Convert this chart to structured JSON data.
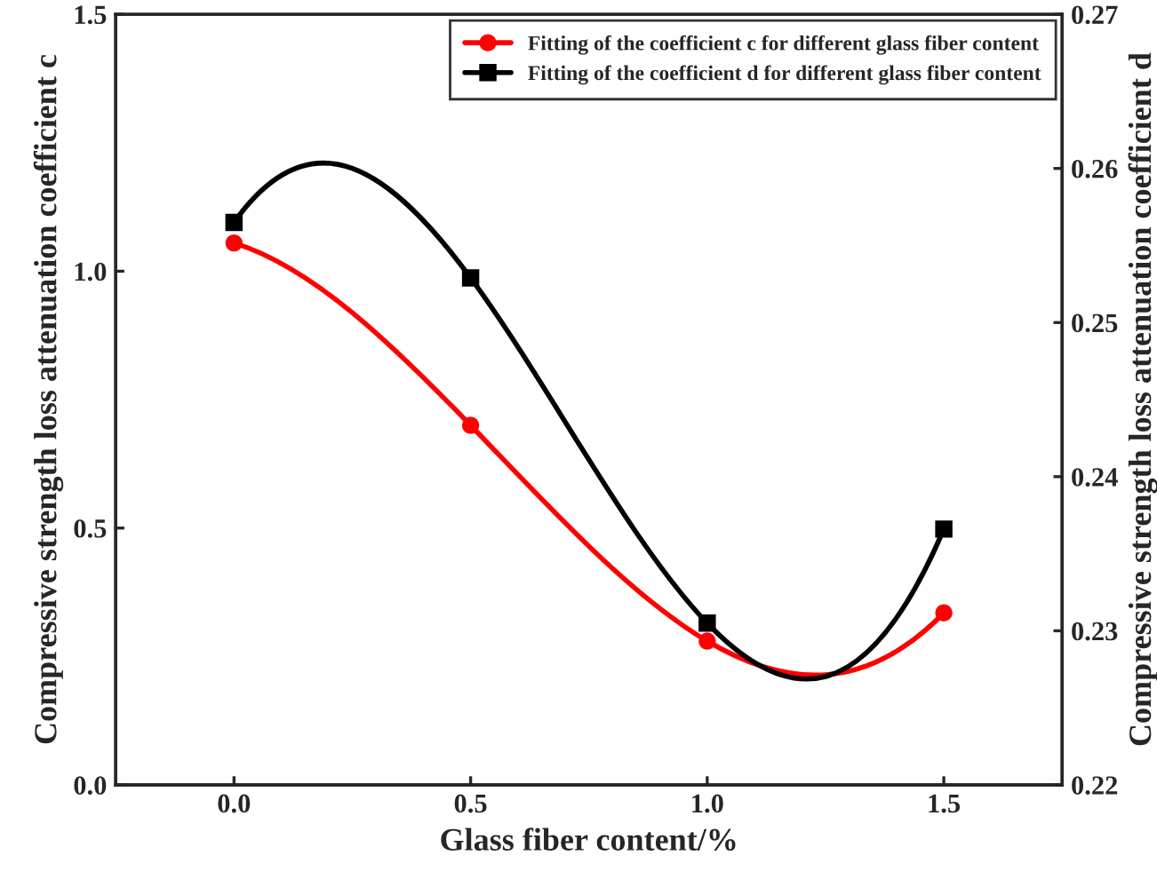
{
  "chart_data": {
    "type": "line",
    "xlabel": "Glass fiber content/%",
    "ylabel": "Compressive strength loss attenuation coefficient c",
    "y2label": "Compressive strength loss attenuation coefficient d",
    "x": [
      0,
      0.5,
      1.0,
      1.5
    ],
    "series": [
      {
        "name": "Fitting of the coefficient c for different glass fiber content",
        "color": "#ff0000",
        "values": [
          1.055,
          0.7,
          0.28,
          0.335
        ],
        "marker": "circle"
      },
      {
        "name": "Fitting of the coefficient d for different glass fiber content",
        "color": "#000000",
        "values": [
          0.2565,
          0.2529,
          0.2305,
          0.2366
        ],
        "axis": "y2",
        "marker": "square"
      }
    ],
    "xlim": [
      -0.25,
      1.75
    ],
    "xticks": [
      {
        "value": 0,
        "label": "0.0"
      },
      0.5,
      {
        "value": 1,
        "label": "1.0"
      },
      1.5
    ],
    "ylim": [
      0,
      1.5
    ],
    "yticks": [
      {
        "value": 0,
        "label": "0.0"
      },
      0.5,
      {
        "value": 1,
        "label": "1.0"
      },
      1.5
    ],
    "y2lim": [
      0.22,
      0.27
    ],
    "y2ticks": [
      0.22,
      0.23,
      0.24,
      0.25,
      0.26,
      0.27
    ],
    "legend": "top right",
    "grid": false,
    "line_style": "solid"
  }
}
